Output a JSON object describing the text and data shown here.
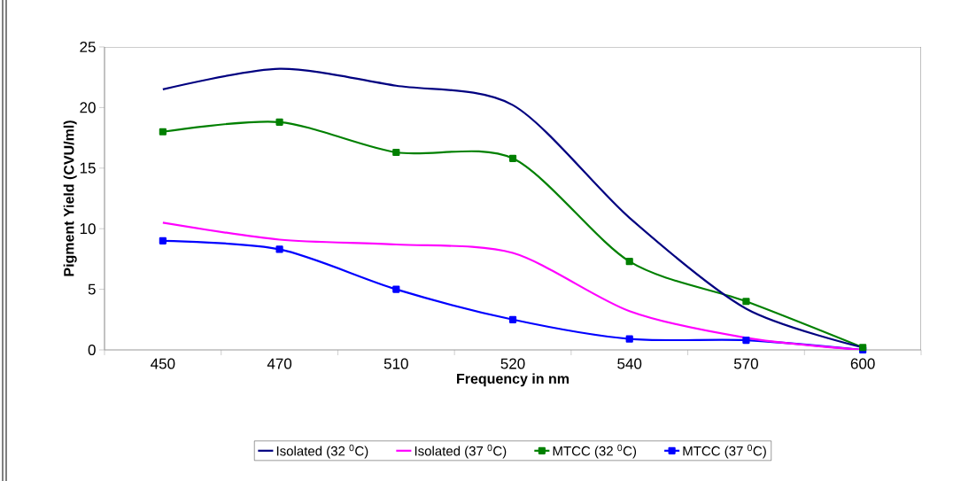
{
  "chart_data": {
    "type": "line",
    "xlabel": "Frequency in nm",
    "ylabel": "Pigment Yield (CVU/ml)",
    "categories": [
      "450",
      "470",
      "510",
      "520",
      "540",
      "570",
      "600"
    ],
    "ylim": [
      0,
      25
    ],
    "yticks": [
      0,
      5,
      10,
      15,
      20,
      25
    ],
    "grid": false,
    "legend": "bottom",
    "series": [
      {
        "name": "Isolated (32 $^{0}$C)",
        "color": "#000080",
        "marker": "none",
        "values": [
          21.5,
          23.2,
          21.8,
          20.2,
          10.9,
          3.4,
          0.2
        ]
      },
      {
        "name": "Isolated (37 $^{0}$C)",
        "color": "#ff00ff",
        "marker": "none",
        "values": [
          10.5,
          9.1,
          8.7,
          8.0,
          3.2,
          1.0,
          0
        ]
      },
      {
        "name": "MTCC (32 $^{0}$C)",
        "color": "#008000",
        "marker": "square",
        "values": [
          18.0,
          18.8,
          16.3,
          15.8,
          7.3,
          4.0,
          0.2
        ]
      },
      {
        "name": "MTCC (37 $^{0}$C)",
        "color": "#0000ff",
        "marker": "square",
        "values": [
          9.0,
          8.3,
          5.0,
          2.5,
          0.9,
          0.8,
          0
        ]
      }
    ]
  }
}
